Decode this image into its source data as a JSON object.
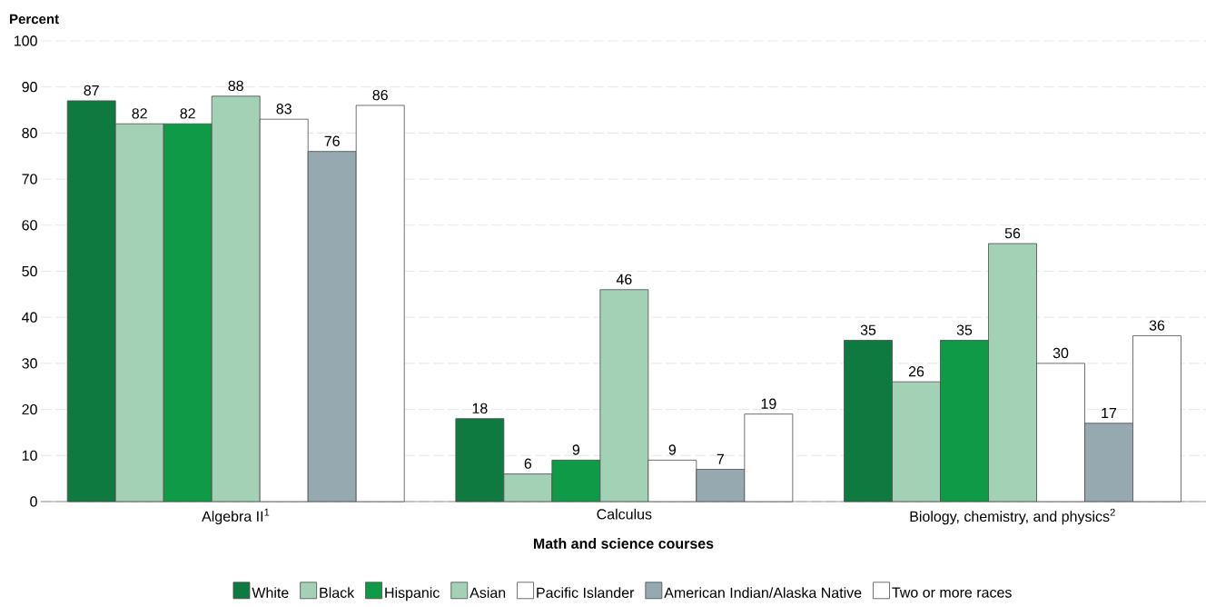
{
  "chart_data": {
    "type": "bar",
    "xlabel": "Math and science courses",
    "ylabel": "Percent",
    "categories": [
      "Algebra II$^{1}$",
      "Calculus",
      "Biology, chemistry, and physics$^{2}$"
    ],
    "series": [
      {
        "name": "White",
        "color": "#0e7a40",
        "values": [
          87,
          18,
          35
        ]
      },
      {
        "name": "Black",
        "color": "#a2d1b6",
        "values": [
          82,
          6,
          26
        ]
      },
      {
        "name": "Hispanic",
        "color": "#0f9a48",
        "values": [
          82,
          9,
          35
        ]
      },
      {
        "name": "Asian",
        "color": "#a2d1b6",
        "values": [
          88,
          46,
          56
        ]
      },
      {
        "name": "Pacific Islander",
        "color": "#ffffff",
        "values": [
          83,
          9,
          30
        ]
      },
      {
        "name": "American Indian/Alaska Native",
        "color": "#96a9b1",
        "values": [
          76,
          7,
          17
        ]
      },
      {
        "name": "Two or more races",
        "color": "#ffffff",
        "values": [
          86,
          19,
          36
        ]
      }
    ],
    "ylim": [
      0,
      100
    ],
    "yticks": [
      0,
      10,
      20,
      30,
      40,
      50,
      60,
      70,
      80,
      90,
      100
    ],
    "grid": "y",
    "legend": "bottom",
    "data_labels": true
  }
}
